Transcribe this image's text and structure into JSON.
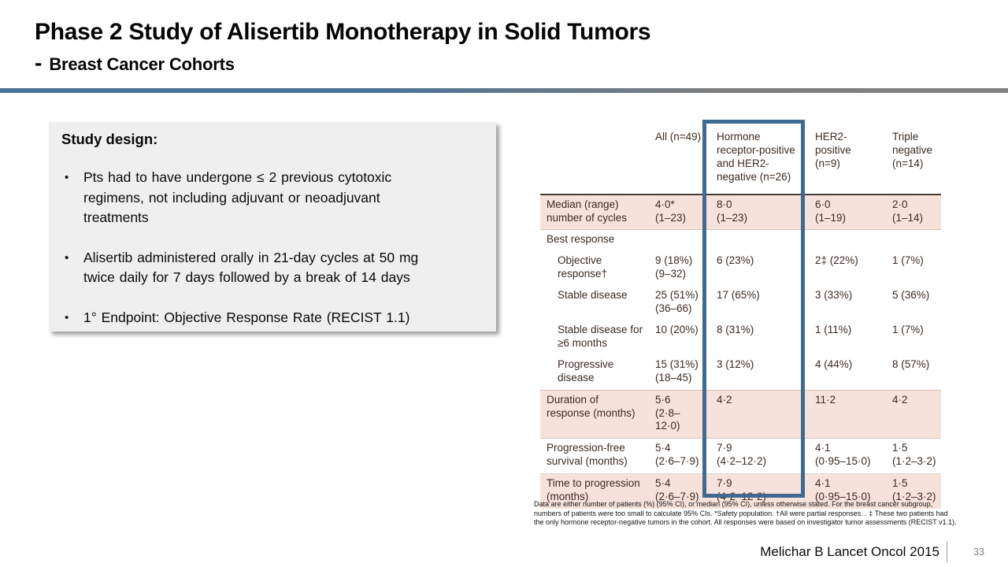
{
  "header": {
    "title": "Phase 2 Study of Alisertib Monotherapy in Solid Tumors",
    "subtitle_dash": "-",
    "subtitle": "Breast Cancer Cohorts"
  },
  "study": {
    "heading": "Study design:",
    "bullet_marker": "•",
    "bullets": [
      [
        "Pts had to have undergone ≤ 2 previous cytotoxic",
        "regimens, not including adjuvant or neoadjuvant",
        "treatments"
      ],
      [
        "Alisertib administered orally in 21-day cycles at 50 mg",
        "twice daily for 7 days followed by a break of 14 days"
      ],
      [
        "1° Endpoint: Objective Response Rate (RECIST 1.1)"
      ]
    ]
  },
  "table": {
    "columns": [
      {
        "lines": [
          "All (n=49)"
        ],
        "highlighted": false
      },
      {
        "lines": [
          "Hormone",
          "receptor-positive",
          "and HER2-",
          "negative (n=26)"
        ],
        "highlighted": true
      },
      {
        "lines": [
          "HER2-",
          "positive",
          "(n=9)"
        ],
        "highlighted": false
      },
      {
        "lines": [
          "Triple",
          "negative",
          "(n=14)"
        ],
        "highlighted": false
      }
    ],
    "rows": [
      {
        "label": [
          "Median (range)",
          "number of cycles"
        ],
        "indent": false,
        "bg": "pink",
        "rule": false,
        "cells": [
          [
            "4·0*",
            "(1–23)"
          ],
          [
            "8·0",
            "(1–23)"
          ],
          [
            "6·0",
            "(1–19)"
          ],
          [
            "2·0",
            "(1–14)"
          ]
        ]
      },
      {
        "label": [
          "Best response"
        ],
        "indent": false,
        "bg": "white",
        "rule": true,
        "cells": [
          [],
          [],
          [],
          []
        ]
      },
      {
        "label": [
          "Objective",
          "response†"
        ],
        "indent": true,
        "bg": "white",
        "rule": false,
        "cells": [
          [
            "9 (18%)",
            "(9–32)"
          ],
          [
            "6 (23%)"
          ],
          [
            "2‡ (22%)"
          ],
          [
            "1 (7%)"
          ]
        ]
      },
      {
        "label": [
          "Stable disease"
        ],
        "indent": true,
        "bg": "white",
        "rule": false,
        "cells": [
          [
            "25 (51%)",
            "(36–66)"
          ],
          [
            "17 (65%)"
          ],
          [
            "3 (33%)"
          ],
          [
            "5 (36%)"
          ]
        ]
      },
      {
        "label": [
          "Stable disease for",
          "≥6 months"
        ],
        "indent": true,
        "bg": "white",
        "rule": false,
        "cells": [
          [
            "10 (20%)"
          ],
          [
            "8 (31%)"
          ],
          [
            "1 (11%)"
          ],
          [
            "1 (7%)"
          ]
        ]
      },
      {
        "label": [
          "Progressive",
          "disease"
        ],
        "indent": true,
        "bg": "white",
        "rule": false,
        "cells": [
          [
            "15 (31%)",
            "(18–45)"
          ],
          [
            "3 (12%)"
          ],
          [
            "4 (44%)"
          ],
          [
            "8 (57%)"
          ]
        ]
      },
      {
        "label": [
          "Duration of",
          "response (months)"
        ],
        "indent": false,
        "bg": "pink",
        "rule": true,
        "cells": [
          [
            "5·6",
            "(2·8–12·0)"
          ],
          [
            "4·2"
          ],
          [
            "11·2"
          ],
          [
            "4·2"
          ]
        ]
      },
      {
        "label": [
          "Progression-free",
          "survival (months)"
        ],
        "indent": false,
        "bg": "white",
        "rule": true,
        "cells": [
          [
            "5·4",
            "(2·6–7·9)"
          ],
          [
            "7·9",
            "(4·2–12·2)"
          ],
          [
            "4·1",
            "(0·95–15·0)"
          ],
          [
            "1·5",
            "(1·2–3·2)"
          ]
        ]
      },
      {
        "label": [
          "Time to progression",
          "(months)"
        ],
        "indent": false,
        "bg": "pink",
        "rule": true,
        "cells": [
          [
            "5·4",
            "(2·6–7·9)"
          ],
          [
            "7·9",
            "(4·2–12·2)"
          ],
          [
            "4·1",
            "(0·95–15·0)"
          ],
          [
            "1·5",
            "(1·2–3·2)"
          ]
        ]
      }
    ],
    "footnote": "Data are either number of patients (%) (95% CI), or median (95% CI), unless otherwise stated. For the breast cancer subgroup, numbers of patients were too small to calculate 95% CIs. *Safety population. †All were partial responses. . ‡ These two patients had the only hormone receptor-negative tumors in the cohort. All responses were based on investigator tumor assessments (RECIST v1.1)."
  },
  "colors": {
    "highlight_blue": "#3e6a90",
    "table_pink": "#f7e2db",
    "divider_left": "#4d7496",
    "divider_right": "#7e7e7e"
  },
  "footer": {
    "citation": "Melichar B Lancet Oncol 2015",
    "page_number": "33"
  }
}
